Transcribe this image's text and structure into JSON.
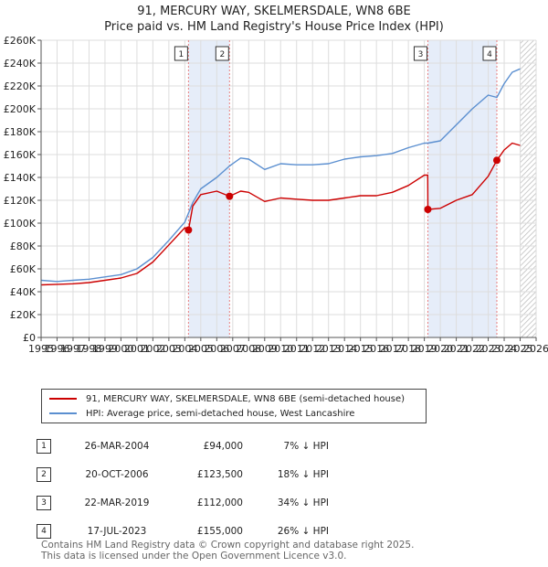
{
  "title_line1": "91, MERCURY WAY, SKELMERSDALE, WN8 6BE",
  "title_line2": "Price paid vs. HM Land Registry's House Price Index (HPI)",
  "legend": {
    "property_label": "91, MERCURY WAY, SKELMERSDALE, WN8 6BE (semi-detached house)",
    "hpi_label": "HPI: Average price, semi-detached house, West Lancashire"
  },
  "sales": [
    {
      "num": "1",
      "date": "26-MAR-2004",
      "price": "£94,000",
      "hpi": "7% ↓ HPI"
    },
    {
      "num": "2",
      "date": "20-OCT-2006",
      "price": "£123,500",
      "hpi": "18% ↓ HPI"
    },
    {
      "num": "3",
      "date": "22-MAR-2019",
      "price": "£112,000",
      "hpi": "34% ↓ HPI"
    },
    {
      "num": "4",
      "date": "17-JUL-2023",
      "price": "£155,000",
      "hpi": "26% ↓ HPI"
    }
  ],
  "footer": {
    "line1": "Contains HM Land Registry data © Crown copyright and database right 2025.",
    "line2": "This data is licensed under the Open Government Licence v3.0."
  },
  "colors": {
    "property": "#cc0000",
    "hpi": "#5b8fd0",
    "shade": "#e6edf9",
    "marker_line": "#e88080"
  },
  "chart_data": {
    "type": "line",
    "title": "91, MERCURY WAY, SKELMERSDALE, WN8 6BE — Price paid vs. HM Land Registry's House Price Index (HPI)",
    "xlabel": "",
    "ylabel": "",
    "xlim": [
      1995,
      2026
    ],
    "ylim": [
      0,
      260000
    ],
    "x_ticks": [
      1995,
      1996,
      1997,
      1998,
      1999,
      2000,
      2001,
      2002,
      2003,
      2004,
      2005,
      2006,
      2007,
      2008,
      2009,
      2010,
      2011,
      2012,
      2013,
      2014,
      2015,
      2016,
      2017,
      2018,
      2019,
      2020,
      2021,
      2022,
      2023,
      2024,
      2025,
      2026
    ],
    "y_ticks": [
      0,
      20000,
      40000,
      60000,
      80000,
      100000,
      120000,
      140000,
      160000,
      180000,
      200000,
      220000,
      240000,
      260000
    ],
    "y_tick_labels": [
      "£0",
      "£20K",
      "£40K",
      "£60K",
      "£80K",
      "£100K",
      "£120K",
      "£140K",
      "£160K",
      "£180K",
      "£200K",
      "£220K",
      "£240K",
      "£260K"
    ],
    "grid": true,
    "shaded_ranges": [
      [
        2004.23,
        2006.8
      ],
      [
        2019.22,
        2023.54
      ]
    ],
    "future_hatch_from": 2025.0,
    "series": [
      {
        "name": "HPI: Average price, semi-detached house, West Lancashire",
        "x": [
          1995,
          1996,
          1997,
          1998,
          1999,
          2000,
          2001,
          2002,
          2003,
          2004,
          2004.5,
          2005,
          2006,
          2006.8,
          2007.5,
          2008,
          2009,
          2010,
          2011,
          2012,
          2013,
          2014,
          2015,
          2016,
          2017,
          2018,
          2019,
          2019.22,
          2020,
          2021,
          2022,
          2023,
          2023.54,
          2024,
          2024.5,
          2025
        ],
        "values": [
          50000,
          49000,
          50000,
          51000,
          53000,
          55000,
          60000,
          70000,
          85000,
          101000,
          118000,
          130000,
          140000,
          150000,
          157000,
          156000,
          147000,
          152000,
          151000,
          151000,
          152000,
          156000,
          158000,
          159000,
          161000,
          166000,
          170000,
          170000,
          172000,
          186000,
          200000,
          212000,
          210000,
          222000,
          232000,
          235000
        ]
      },
      {
        "name": "91, MERCURY WAY, SKELMERSDALE, WN8 6BE (semi-detached house)",
        "x": [
          1995,
          1996,
          1997,
          1998,
          1999,
          2000,
          2001,
          2002,
          2003,
          2004,
          2004.23,
          2004.5,
          2005,
          2006,
          2006.8,
          2007.5,
          2008,
          2009,
          2010,
          2011,
          2012,
          2013,
          2014,
          2015,
          2016,
          2017,
          2018,
          2019,
          2019.21,
          2019.22,
          2020,
          2021,
          2022,
          2023,
          2023.54,
          2024,
          2024.5,
          2025
        ],
        "values": [
          46000,
          46500,
          47000,
          48000,
          50000,
          52000,
          56000,
          66000,
          81000,
          96000,
          94000,
          115000,
          125000,
          128000,
          123500,
          128000,
          127000,
          119000,
          122000,
          121000,
          120000,
          120000,
          122000,
          124000,
          124000,
          127000,
          133000,
          142000,
          142000,
          112000,
          113000,
          120000,
          125000,
          141000,
          155000,
          164000,
          170000,
          168000
        ]
      }
    ],
    "sale_markers": [
      {
        "label": "1",
        "x": 2004.23,
        "value": 94000
      },
      {
        "label": "2",
        "x": 2006.8,
        "value": 123500
      },
      {
        "label": "3",
        "x": 2019.22,
        "value": 112000
      },
      {
        "label": "4",
        "x": 2023.54,
        "value": 155000
      }
    ]
  }
}
